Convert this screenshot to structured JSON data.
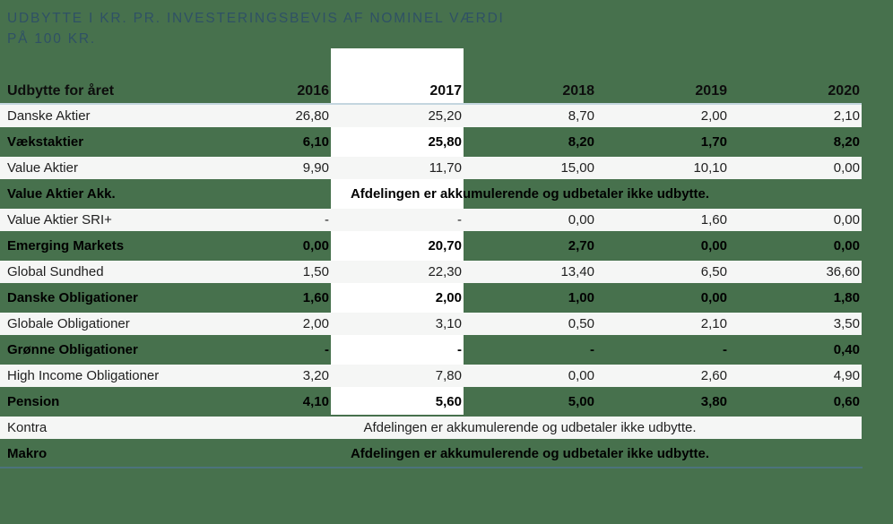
{
  "title": {
    "line1": "UDBYTTE I KR. PR. INVESTERINGSBEVIS AF NOMINEL VÆRDI",
    "line2": "PÅ 100 KR."
  },
  "table": {
    "header": {
      "label": "Udbytte for året",
      "years": [
        "2016",
        "2017",
        "2018",
        "2019",
        "2020"
      ]
    },
    "highlighted_year": "2017",
    "rows": [
      {
        "label": "Danske Aktier",
        "style": "light",
        "values": [
          "26,80",
          "25,20",
          "8,70",
          "2,00",
          "2,10"
        ]
      },
      {
        "label": "Vækstaktier",
        "style": "green",
        "values": [
          "6,10",
          "25,80",
          "8,20",
          "1,70",
          "8,20"
        ]
      },
      {
        "label": "Value Aktier",
        "style": "light",
        "values": [
          "9,90",
          "11,70",
          "15,00",
          "10,10",
          "0,00"
        ]
      },
      {
        "label": "Value Aktier Akk.",
        "style": "green",
        "note": "Afdelingen er akkumulerende og udbetaler ikke udbytte."
      },
      {
        "label": "Value Aktier SRI+",
        "style": "light",
        "values": [
          "-",
          "-",
          "0,00",
          "1,60",
          "0,00"
        ]
      },
      {
        "label": "Emerging Markets",
        "style": "green",
        "values": [
          "0,00",
          "20,70",
          "2,70",
          "0,00",
          "0,00"
        ]
      },
      {
        "label": "Global Sundhed",
        "style": "light",
        "values": [
          "1,50",
          "22,30",
          "13,40",
          "6,50",
          "36,60"
        ]
      },
      {
        "label": "Danske Obligationer",
        "style": "green",
        "values": [
          "1,60",
          "2,00",
          "1,00",
          "0,00",
          "1,80"
        ]
      },
      {
        "label": "Globale Obligationer",
        "style": "light",
        "values": [
          "2,00",
          "3,10",
          "0,50",
          "2,10",
          "3,50"
        ]
      },
      {
        "label": "Grønne Obligationer",
        "style": "green",
        "values": [
          "-",
          "-",
          "-",
          "-",
          "0,40"
        ]
      },
      {
        "label": "High Income Obligationer",
        "style": "light",
        "values": [
          "3,20",
          "7,80",
          "0,00",
          "2,60",
          "4,90"
        ]
      },
      {
        "label": "Pension",
        "style": "green",
        "values": [
          "4,10",
          "5,60",
          "5,00",
          "3,80",
          "0,60"
        ]
      },
      {
        "label": "Kontra",
        "style": "light",
        "note": "Afdelingen er akkumulerende og udbetaler ikke udbytte."
      },
      {
        "label": "Makro",
        "style": "green",
        "note": "Afdelingen er akkumulerende og udbetaler ikke udbytte."
      }
    ]
  },
  "colors": {
    "background_green": "#47714D",
    "light_row": "#F5F6F5",
    "highlight_column": "#FFFFFF",
    "header_underline": "#C4D6DF",
    "bottom_border": "#4C737C",
    "title_text": "#2F5165"
  }
}
